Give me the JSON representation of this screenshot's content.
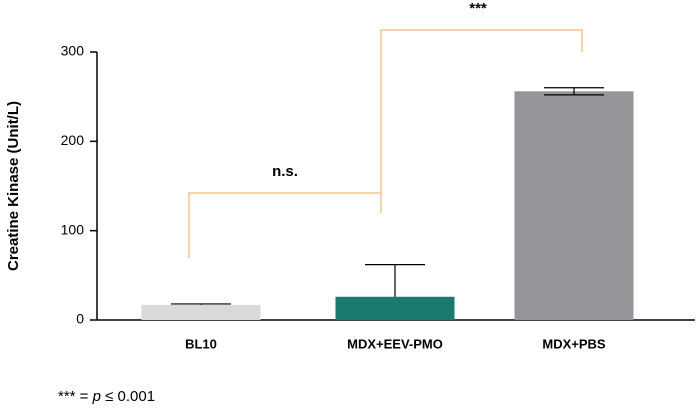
{
  "chart_data": {
    "type": "bar",
    "ylabel": "Creatine Kinase (Unit/L)",
    "categories": [
      "BL10",
      "MDX+EEV-PMO",
      "MDX+PBS"
    ],
    "values": [
      17,
      26,
      256
    ],
    "errors": [
      1,
      36,
      4
    ],
    "colors": [
      "#d9d9d9",
      "#1b7a6e",
      "#939598"
    ],
    "ylim": [
      0,
      300
    ],
    "yticks": [
      0,
      100,
      200,
      300
    ],
    "annotations": [
      {
        "label": "n.s."
      },
      {
        "label": "***"
      }
    ],
    "footnote": [
      "*** = ",
      "p",
      " ≤ 0.001"
    ]
  }
}
